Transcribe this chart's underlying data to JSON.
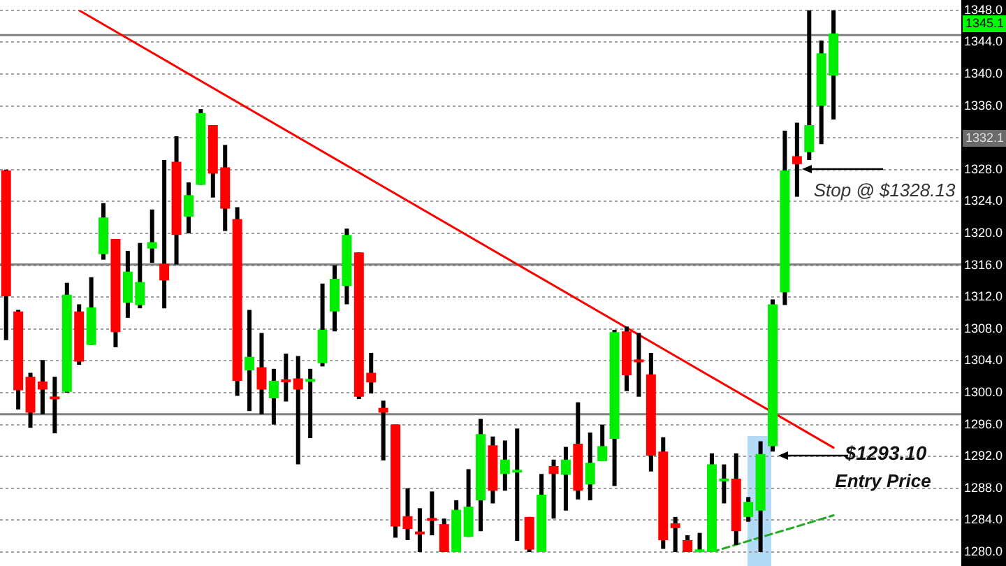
{
  "chart_data": {
    "type": "candlestick",
    "tick_labels": "y",
    "grid": "y",
    "categories": [
      null,
      null,
      null,
      null,
      null,
      null,
      null,
      null,
      null,
      null,
      null,
      null,
      null,
      null,
      null,
      null,
      null,
      null,
      null,
      null,
      null,
      null,
      null,
      null,
      null,
      null,
      null,
      null,
      null,
      null,
      null,
      null,
      null,
      null,
      null,
      null,
      null,
      null,
      null,
      null,
      null,
      null,
      null,
      null,
      null,
      null,
      null,
      null,
      null,
      null,
      null,
      null,
      null,
      null,
      null,
      null,
      null,
      null,
      null,
      null,
      null,
      null,
      null,
      null,
      null,
      null,
      null,
      null,
      null,
      null,
      null,
      null,
      null,
      null,
      null,
      null,
      null,
      null,
      null
    ],
    "ohlc": [
      [
        1327.9,
        1328,
        1306.6,
        1312.1
      ],
      [
        1310.2,
        1310.4,
        1297.9,
        1300.3
      ],
      [
        1302.0,
        1302.5,
        1295.6,
        1297.5
      ],
      [
        1301.4,
        1304.1,
        1297.3,
        1300.4
      ],
      [
        1299.4,
        1302.0,
        1294.9,
        1299.3
      ],
      [
        1300.1,
        1313.8,
        1300.0,
        1312.3
      ],
      [
        1310.2,
        1311.1,
        1303.5,
        1303.9
      ],
      [
        1306.0,
        1314.5,
        1306.0,
        1310.7
      ],
      [
        1317.4,
        1323.8,
        1316.7,
        1322.0
      ],
      [
        1319.3,
        1319.3,
        1305.7,
        1307.6
      ],
      [
        1311.3,
        1317.8,
        1309.4,
        1315.2
      ],
      [
        1311.0,
        1318.8,
        1310.6,
        1313.9
      ],
      [
        1318.1,
        1323.0,
        1316.3,
        1318.9
      ],
      [
        1316.2,
        1329.2,
        1310.6,
        1314.1
      ],
      [
        1329.0,
        1332.2,
        1316.1,
        1319.8
      ],
      [
        1322.1,
        1326.4,
        1320.0,
        1324.8
      ],
      [
        1326.1,
        1335.6,
        1326.1,
        1335.1
      ],
      [
        1333.6,
        1333.6,
        1324.5,
        1327.5
      ],
      [
        1328.3,
        1331.1,
        1320.3,
        1323.1
      ],
      [
        1321.8,
        1323.3,
        1299.6,
        1301.5
      ],
      [
        1302.8,
        1310.4,
        1297.7,
        1304.5
      ],
      [
        1303.2,
        1307.5,
        1297.3,
        1300.4
      ],
      [
        1299.3,
        1303.0,
        1296.0,
        1301.5
      ],
      [
        1301.6,
        1304.9,
        1298.9,
        1301.4
      ],
      [
        1301.8,
        1304.6,
        1291.0,
        1300.4
      ],
      [
        1301.5,
        1303.0,
        1294.3,
        1301.6
      ],
      [
        1303.7,
        1313.7,
        1303.3,
        1307.9
      ],
      [
        1310.2,
        1316.0,
        1307.7,
        1314.3
      ],
      [
        1313.4,
        1320.6,
        1311.1,
        1319.8
      ],
      [
        1317.6,
        1317.6,
        1299.2,
        1299.5
      ],
      [
        1302.5,
        1305.0,
        1299.9,
        1301.3
      ],
      [
        1298.1,
        1299.0,
        1291.5,
        1297.5
      ],
      [
        1296.0,
        1296.0,
        1281.8,
        1283.2
      ],
      [
        1284.5,
        1288.0,
        1281.5,
        1282.9
      ],
      [
        1282.5,
        1285.5,
        1280,
        1282.3
      ],
      [
        1284.2,
        1287.6,
        1282.1,
        1284.0
      ],
      [
        1283.5,
        1284.2,
        1280,
        1280
      ],
      [
        1280,
        1286.5,
        1280,
        1285.3
      ],
      [
        1281.9,
        1290.4,
        1281.9,
        1285.7
      ],
      [
        1286.5,
        1296.7,
        1282.6,
        1294.8
      ],
      [
        1293.4,
        1294.5,
        1286.1,
        1287.7
      ],
      [
        1289.8,
        1294.0,
        1287.7,
        1291.6
      ],
      [
        1290.1,
        1295.5,
        1281.4,
        1290.2
      ],
      [
        1284.4,
        1284.4,
        1280,
        1280.3
      ],
      [
        1280,
        1289.8,
        1280,
        1287.2
      ],
      [
        1290.8,
        1291.6,
        1284.2,
        1289.8
      ],
      [
        1289.7,
        1293.2,
        1285.2,
        1291.6
      ],
      [
        1293.6,
        1298.8,
        1286.6,
        1287.7
      ],
      [
        1288.5,
        1295.0,
        1286.5,
        1291.2
      ],
      [
        1291.4,
        1296.0,
        1291.4,
        1293.3
      ],
      [
        1294.2,
        1307.9,
        1288.3,
        1307.6
      ],
      [
        1307.7,
        1308.3,
        1300.2,
        1302.2
      ],
      [
        1304.1,
        1307.5,
        1299.5,
        1303.9
      ],
      [
        1302.3,
        1305.0,
        1290.1,
        1292.1
      ],
      [
        1292.6,
        1294.4,
        1280.4,
        1281.5
      ],
      [
        1283.6,
        1284.4,
        1280,
        1283.0
      ],
      [
        1281.5,
        1282.1,
        1280,
        1280
      ],
      [
        1280,
        1282.4,
        1280,
        1280.3
      ],
      [
        1280,
        1292.4,
        1280,
        1291.0
      ],
      [
        1289.0,
        1291.0,
        1286.1,
        1289.1
      ],
      [
        1289.2,
        1292.4,
        1280.9,
        1282.6
      ],
      [
        1284.4,
        1286.9,
        1283.8,
        1286.3
      ],
      [
        1285.2,
        1293.9,
        1280,
        1292.3
      ],
      [
        1293.3,
        1311.7,
        1292.6,
        1311.1
      ],
      [
        1312.6,
        1332.9,
        1311.0,
        1327.9
      ],
      [
        1329.7,
        1333.9,
        1324.6,
        1328.7
      ],
      [
        1330.2,
        1348,
        1329.2,
        1333.6
      ],
      [
        1336.0,
        1344.2,
        1331.2,
        1342.6
      ],
      [
        1339.8,
        1348,
        1334.3,
        1345.1
      ],
      null,
      null,
      null,
      null,
      null,
      null,
      null,
      null,
      null,
      null
    ],
    "series": [
      {
        "type": "line",
        "color": "#ff0000",
        "values": [
          null,
          null,
          null,
          null,
          null,
          null,
          1348,
          null,
          null,
          null,
          null,
          null,
          null,
          null,
          null,
          null,
          null,
          null,
          null,
          null,
          null,
          null,
          null,
          null,
          null,
          null,
          null,
          null,
          null,
          null,
          null,
          null,
          null,
          null,
          null,
          null,
          null,
          null,
          null,
          null,
          null,
          null,
          null,
          null,
          null,
          null,
          null,
          null,
          null,
          null,
          null,
          null,
          null,
          null,
          null,
          null,
          null,
          null,
          null,
          null,
          null,
          null,
          null,
          null,
          null,
          null,
          null,
          null,
          1293.1,
          null,
          null,
          null,
          null,
          null,
          null,
          null,
          null,
          null,
          null
        ]
      },
      {
        "type": "line",
        "color": "#22aa22",
        "line_style": "dashed",
        "values": [
          null,
          null,
          null,
          null,
          null,
          null,
          null,
          null,
          null,
          null,
          null,
          null,
          null,
          null,
          null,
          null,
          null,
          null,
          null,
          null,
          null,
          null,
          null,
          null,
          null,
          null,
          null,
          null,
          null,
          null,
          null,
          null,
          null,
          null,
          null,
          null,
          null,
          null,
          null,
          null,
          null,
          null,
          null,
          null,
          null,
          null,
          null,
          null,
          null,
          null,
          null,
          null,
          null,
          null,
          null,
          null,
          null,
          null,
          1280.0,
          null,
          null,
          null,
          null,
          null,
          null,
          null,
          null,
          null,
          1284.6,
          null,
          null,
          null,
          null,
          null,
          null,
          null,
          null,
          null,
          null
        ]
      }
    ],
    "ylim": [
      1280,
      1348
    ],
    "yticks": [
      {
        "value": 1280,
        "label": "1280.0"
      },
      {
        "value": 1284,
        "label": "1284.0"
      },
      {
        "value": 1288,
        "label": "1288.0"
      },
      {
        "value": 1292,
        "label": "1292.0"
      },
      {
        "value": 1296,
        "label": "1296.0"
      },
      {
        "value": 1300,
        "label": "1300.0"
      },
      {
        "value": 1304,
        "label": "1304.0"
      },
      {
        "value": 1308,
        "label": "1308.0"
      },
      {
        "value": 1312,
        "label": "1312.0"
      },
      {
        "value": 1316,
        "label": "1316.0"
      },
      {
        "value": 1320,
        "label": "1320.0"
      },
      {
        "value": 1324,
        "label": "1324.0"
      },
      {
        "value": 1328,
        "label": "1328.0"
      },
      {
        "value": 1332,
        "label": null
      },
      {
        "value": 1336,
        "label": "1336.0"
      },
      {
        "value": 1340,
        "label": "1340.0"
      },
      {
        "value": 1344,
        "label": "1344.0"
      },
      {
        "value": 1348,
        "label": "1348.0"
      }
    ],
    "ref_lines": [
      {
        "axis": "y",
        "value": 1344.9,
        "color": "#808080"
      },
      {
        "axis": "y",
        "value": 1316.1,
        "color": "#808080"
      },
      {
        "axis": "y",
        "value": 1297.3,
        "color": "#808080"
      }
    ],
    "annotations": [
      "1345.1",
      "1332.1",
      "Stop @ $1328.13",
      "$1293.10",
      "Entry Price"
    ]
  }
}
